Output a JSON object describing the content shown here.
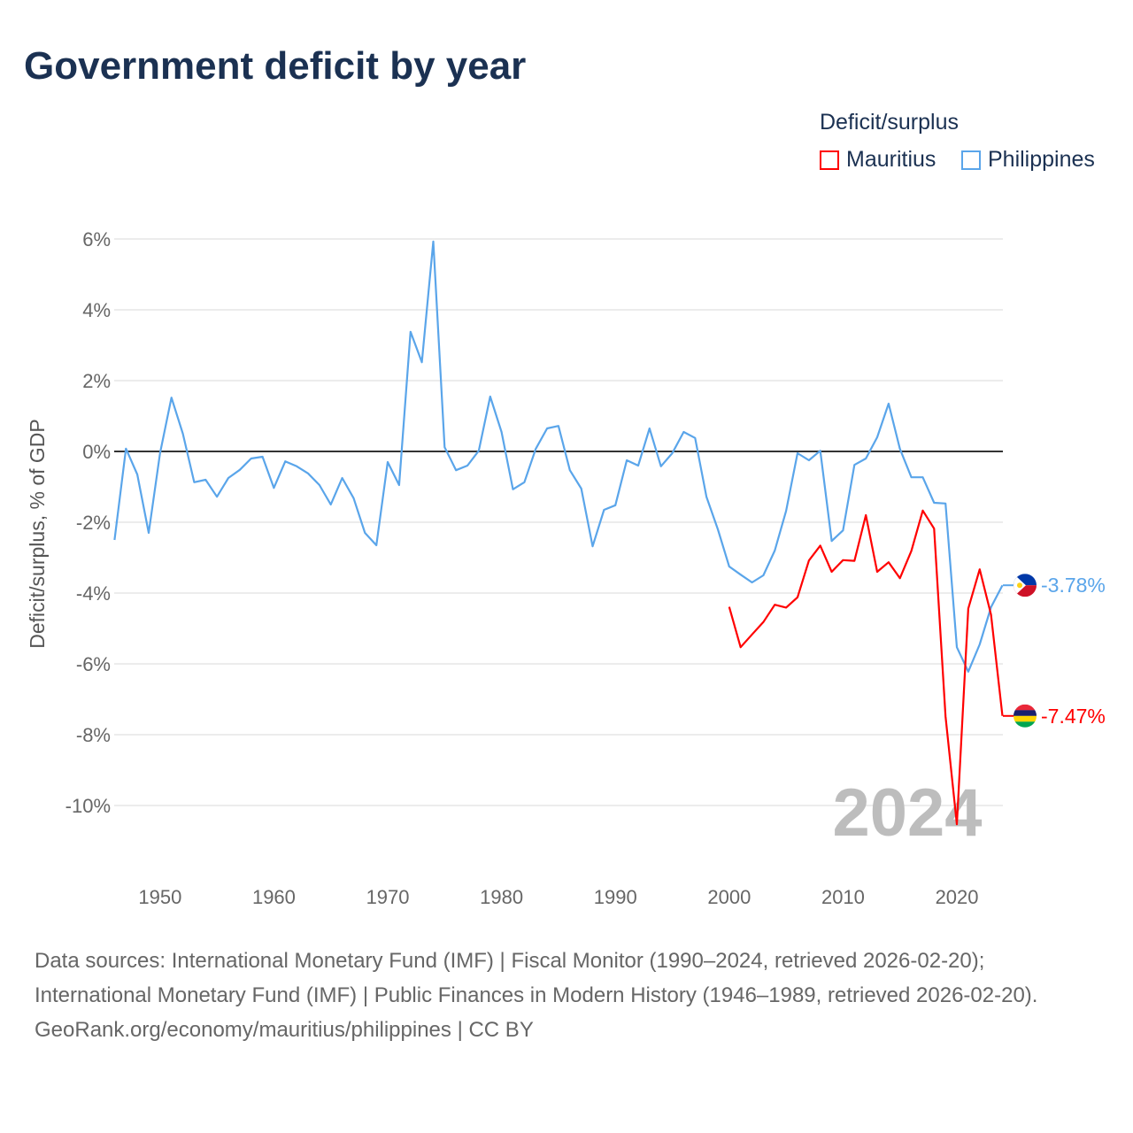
{
  "title": "Government deficit by year",
  "legend": {
    "title": "Deficit/surplus",
    "items": [
      {
        "name": "Mauritius",
        "color": "#ff0000"
      },
      {
        "name": "Philippines",
        "color": "#5aa5ea"
      }
    ]
  },
  "footer": {
    "sources": "Data sources: International Monetary Fund (IMF) | Fiscal Monitor (1990–2024, retrieved 2026-02-20); International Monetary Fund (IMF) | Public Finances in Modern History (1946–1989, retrieved 2026-02-20).",
    "credit": "GeoRank.org/economy/mauritius/philippines | CC BY"
  },
  "chart_data": {
    "type": "line",
    "title": "Government deficit by year",
    "xlabel": "",
    "ylabel": "Deficit/surplus, % of GDP",
    "xlim": [
      1946,
      2024
    ],
    "ylim": [
      -11,
      6
    ],
    "xticks": [
      "1950",
      "1960",
      "1970",
      "1980",
      "1990",
      "2000",
      "2010",
      "2020"
    ],
    "yticks": [
      {
        "v": 6,
        "label": "6%"
      },
      {
        "v": 4,
        "label": "4%"
      },
      {
        "v": 2,
        "label": "2%"
      },
      {
        "v": 0,
        "label": "0%"
      },
      {
        "v": -2,
        "label": "-2%"
      },
      {
        "v": -4,
        "label": "-4%"
      },
      {
        "v": -6,
        "label": "-6%"
      },
      {
        "v": -8,
        "label": "-8%"
      },
      {
        "v": -10,
        "label": "-10%"
      }
    ],
    "year_watermark": "2024",
    "series": [
      {
        "name": "Philippines",
        "color": "#5aa5ea",
        "end_label": "-3.78%",
        "start": 1946,
        "values": [
          -2.5,
          0.08,
          -0.65,
          -2.3,
          -0.05,
          1.52,
          0.5,
          -0.87,
          -0.8,
          -1.28,
          -0.75,
          -0.52,
          -0.2,
          -0.15,
          -1.03,
          -0.28,
          -0.42,
          -0.62,
          -0.95,
          -1.5,
          -0.75,
          -1.32,
          -2.3,
          -2.65,
          -0.3,
          -0.95,
          3.38,
          2.52,
          5.93,
          0.12,
          -0.53,
          -0.4,
          0.02,
          1.55,
          0.55,
          -1.07,
          -0.87,
          0.07,
          0.65,
          0.72,
          -0.53,
          -1.05,
          -2.68,
          -1.65,
          -1.52,
          -0.25,
          -0.4,
          0.65,
          -0.42,
          -0.05,
          0.55,
          0.38,
          -1.28,
          -2.2,
          -3.25,
          -3.48,
          -3.7,
          -3.5,
          -2.8,
          -1.68,
          -0.05,
          -0.25,
          0.02,
          -2.53,
          -2.23,
          -0.38,
          -0.2,
          0.4,
          1.35,
          0.07,
          -0.73,
          -0.73,
          -1.45,
          -1.47,
          -5.53,
          -6.22,
          -5.45,
          -4.4,
          -3.78
        ]
      },
      {
        "name": "Mauritius",
        "color": "#ff0000",
        "end_label": "-7.47%",
        "start": 2000,
        "values": [
          -4.39,
          -5.53,
          -5.17,
          -4.82,
          -4.33,
          -4.41,
          -4.12,
          -3.08,
          -2.66,
          -3.4,
          -3.07,
          -3.09,
          -1.8,
          -3.4,
          -3.13,
          -3.58,
          -2.81,
          -1.67,
          -2.18,
          -7.48,
          -10.53,
          -4.44,
          -3.33,
          -4.61,
          -7.47
        ]
      }
    ]
  }
}
